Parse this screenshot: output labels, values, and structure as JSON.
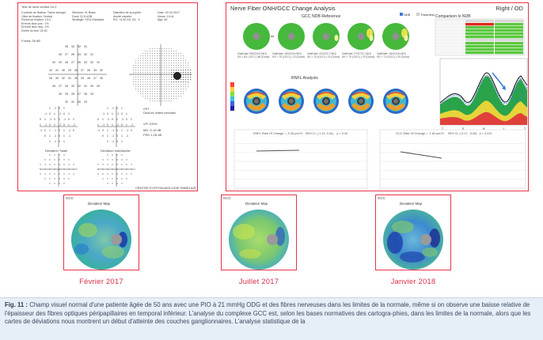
{
  "vf_report": {
    "header": "Test de seuil central 24-2",
    "left_lines": "Contrôle de fixation: Tache aveugle\nCible de fixation: Central\nPertes de fixation: 1/13\nErreurs faux pos.: 1%\nErreurs faux nég.: 1%\nDurée du test: 04:30",
    "mid_lines": "Stimulus: III, Blanc\nFond: 31,5 ASB\nStratégie: SITA-Standard",
    "right_lines": "Diamètre de la pupille:\nAcuité visuelle:\nRX: +0,00 DS  DC  X",
    "date_lines": "Date: 02-02-2017\nHeure: 10:41\nÂge: 50",
    "fovea": "Fovéa: 35 dB",
    "ght_lines": "GHT\nDans les limites normales",
    "vfi_line": "VFI  100%",
    "md_line": "MD  -0,19 dB",
    "psd_line": "PSD  1,28 dB",
    "dev_total": "Déviation Totale",
    "dev_indiv": "Déviation individuelle",
    "footer": "CENTRE D'OPHTALMOLOGIE RABELAIS"
  },
  "oct_report": {
    "title": "Nerve Fiber ONH/GCC Change Analysis",
    "eye": "Right / OD",
    "gcc_ref": "GCC NDB Reference",
    "legend_a": "NDB",
    "legend_b": "Thickness",
    "rnfl_analysis": "RNFL Analysis",
    "comparison": "Comparison to NDB",
    "rnfl_rate": "RNFL Rate Of Change = -0.36 µm/Yr",
    "rnfl_stats": "95% CI: (-1.13, 0.41)    p = 0.34",
    "gcc_rate": "GCC Rate Of Change = -1.83 µm/Yr",
    "gcc_stats": "95% CI: (-3.17, -0.49)   p = 0.021",
    "visit_notes": [
      "VisitDate: 08/02/15 (NH)\nSS = 63 | GCC | 58 (Good)",
      "VisitDate: 15/02/16 (NH)\nSS = 70 (GCC) | 73 (Good)",
      "VisitDate: 02/02/17 (NH)\nSS = 70 (GCC) | 74 (Good)",
      "VisitDate: 07/07/17 (NH)\nSS = 70 (GCC) | 75 (Good)",
      "VisitDate: 16/01/18 (NH)\nSS = 71 (GCC) | 74 (Good)"
    ]
  },
  "gcc_maps": [
    {
      "corner": "GCC",
      "title": "Deviation Map",
      "label": "Février 2017"
    },
    {
      "corner": "GCC",
      "title": "Deviation Map",
      "label": "Juillet 2017"
    },
    {
      "corner": "GCC",
      "title": "Deviation Map",
      "label": "Janvier 2018"
    }
  ],
  "caption": {
    "lead": "Fig. 11 :",
    "text": " Champ visuel normal d'une patiente âgée de 50 ans avec une PIO à 21 mmHg ODG et des fibres nerveuses dans les limites de la normale, même si on observe une baisse relative de l'épaisseur des fibres optiques péripapillaires en temporal inférieur. L'analyse du complexe GCC est, selon les bases normatives des cartogra-phies, dans les limites de la normale, alors que les cartes de déviations nous montrent un début d'atteinte des couches ganglionnaires. L'analyse statistique de la"
  }
}
